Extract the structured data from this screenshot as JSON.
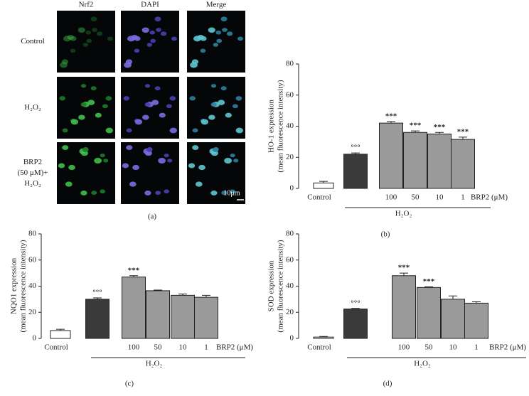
{
  "image_panel": {
    "columns": [
      "Nrf2",
      "DAPI",
      "Merge"
    ],
    "rows": [
      [
        "Control"
      ],
      [
        "H₂O₂"
      ],
      [
        "BRP2",
        "(50 μM)+",
        "H₂O₂"
      ]
    ],
    "scale_bar": "10μm",
    "label": "(a)"
  },
  "chart_data": [
    {
      "type": "bar",
      "label": "(b)",
      "ylabel": [
        "HO-1 expression",
        "(mean fluorescence intensity)"
      ],
      "categories": [
        "Control",
        null,
        "100",
        "50",
        "10",
        "1"
      ],
      "values": [
        3.5,
        22,
        42,
        36,
        35,
        31.5
      ],
      "errors": [
        1,
        0.8,
        1,
        1,
        1,
        1.5
      ],
      "colors": [
        "#ffffff",
        "#3a3a3a",
        "#9a9a9a",
        "#9a9a9a",
        "#9a9a9a",
        "#9a9a9a"
      ],
      "annotations": [
        null,
        "°°°",
        "***",
        "***",
        "***",
        "***"
      ],
      "unit_label": "BRP2 (μM)",
      "group_label": "H₂O₂",
      "ylim": [
        0,
        80
      ],
      "yticks": [
        0,
        20,
        40,
        60,
        80
      ]
    },
    {
      "type": "bar",
      "label": "(c)",
      "ylabel": [
        "NQO1 expression",
        "(mean fluorescence intensity)"
      ],
      "categories": [
        "Control",
        null,
        "100",
        "50",
        "10",
        "1"
      ],
      "values": [
        6,
        30,
        47,
        36.5,
        33,
        31.5
      ],
      "errors": [
        1,
        1,
        1,
        0.5,
        1,
        1.5
      ],
      "colors": [
        "#ffffff",
        "#3a3a3a",
        "#9a9a9a",
        "#9a9a9a",
        "#9a9a9a",
        "#9a9a9a"
      ],
      "annotations": [
        null,
        "°°°",
        "***",
        null,
        null,
        null
      ],
      "unit_label": "BRP2 (μM)",
      "group_label": "H₂O₂",
      "ylim": [
        0,
        80
      ],
      "yticks": [
        0,
        20,
        40,
        60,
        80
      ]
    },
    {
      "type": "bar",
      "label": "(d)",
      "ylabel": [
        "SOD expression",
        "(mean fluorescence intensity)"
      ],
      "categories": [
        "Control",
        null,
        "100",
        "50",
        "10",
        "1"
      ],
      "values": [
        1,
        22.5,
        48,
        39,
        30,
        27
      ],
      "errors": [
        0.5,
        0.5,
        2,
        0.5,
        2.5,
        1
      ],
      "colors": [
        "#ffffff",
        "#3a3a3a",
        "#9a9a9a",
        "#9a9a9a",
        "#9a9a9a",
        "#9a9a9a"
      ],
      "annotations": [
        null,
        "°°°",
        "***",
        "***",
        null,
        null
      ],
      "unit_label": "BRP2 (μM)",
      "group_label": "H₂O₂",
      "ylim": [
        0,
        80
      ],
      "yticks": [
        0,
        20,
        40,
        60,
        80
      ]
    }
  ]
}
